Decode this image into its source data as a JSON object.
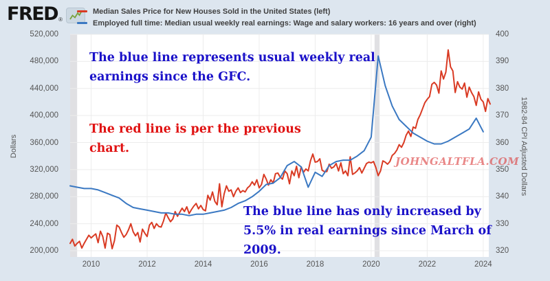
{
  "header": {
    "logo_text": "FRED",
    "registered_mark": "®",
    "legend": [
      {
        "label": "Median Sales Price for New Houses Sold in the United States (left)",
        "color": "#d93a23"
      },
      {
        "label": "Employed full time: Median usual weekly real earnings: Wage and salary workers: 16 years and over (right)",
        "color": "#3a78c2"
      }
    ]
  },
  "annotations": {
    "note_blue_top": {
      "lines": [
        "The blue line represents usual weekly real",
        "earnings since the GFC."
      ],
      "color": "#1b12c9"
    },
    "note_red": {
      "lines": [
        "The red line is per the previous",
        "chart."
      ],
      "color": "#e01212"
    },
    "note_blue_bottom": {
      "lines": [
        "The blue line has only increased by",
        "5.5% in real earnings since March of",
        "2009."
      ],
      "color": "#1b12c9"
    }
  },
  "watermark": {
    "text": "JOHNGALTFLA.COM",
    "color": "rgba(219,62,62,0.62)"
  },
  "chart_data": {
    "type": "line",
    "title": "",
    "grid": true,
    "plot_bg": "#ffffff",
    "gridline_color": "#ececec",
    "recession_band_color": "#e0e0e3",
    "left_axis": {
      "title": "Dollars",
      "ticks": [
        {
          "label": "520,000",
          "value": 520000
        },
        {
          "label": "480,000",
          "value": 480000
        },
        {
          "label": "440,000",
          "value": 440000
        },
        {
          "label": "400,000",
          "value": 400000
        },
        {
          "label": "360,000",
          "value": 360000
        },
        {
          "label": "320,000",
          "value": 320000
        },
        {
          "label": "280,000",
          "value": 280000
        },
        {
          "label": "240,000",
          "value": 240000
        },
        {
          "label": "200,000",
          "value": 200000
        }
      ]
    },
    "right_axis": {
      "title": "1982-84 CPI Adjusted Dollars",
      "ticks": [
        {
          "label": "400",
          "value": 400
        },
        {
          "label": "390",
          "value": 390
        },
        {
          "label": "380",
          "value": 380
        },
        {
          "label": "370",
          "value": 370
        },
        {
          "label": "360",
          "value": 360
        },
        {
          "label": "350",
          "value": 350
        },
        {
          "label": "340",
          "value": 340
        },
        {
          "label": "330",
          "value": 330
        },
        {
          "label": "320",
          "value": 320
        }
      ]
    },
    "x_axis": {
      "range": [
        2009.25,
        2024.2
      ],
      "ticks": [
        {
          "label": "2010",
          "value": 2010
        },
        {
          "label": "2012",
          "value": 2012
        },
        {
          "label": "2014",
          "value": 2014
        },
        {
          "label": "2016",
          "value": 2016
        },
        {
          "label": "2018",
          "value": 2018
        },
        {
          "label": "2020",
          "value": 2020
        },
        {
          "label": "2022",
          "value": 2022
        },
        {
          "label": "2024",
          "value": 2024
        }
      ]
    },
    "recession_bands": [
      [
        2009.25,
        2009.5
      ],
      [
        2020.12,
        2020.3
      ]
    ],
    "series": [
      {
        "name": "Median Sales Price for New Houses Sold in the United States",
        "axis": "left",
        "color": "#d93a23",
        "frequency": "monthly",
        "start": 2009.25,
        "step": 0.0833333,
        "values": [
          211000,
          217000,
          207000,
          211000,
          214000,
          204000,
          211000,
          217000,
          223000,
          219000,
          222000,
          225000,
          212000,
          229000,
          221000,
          204000,
          226000,
          224000,
          203000,
          215000,
          238000,
          235000,
          227000,
          220000,
          224000,
          231000,
          240000,
          228000,
          222000,
          227000,
          213000,
          232000,
          226000,
          221000,
          238000,
          242000,
          233000,
          240000,
          236000,
          235000,
          244000,
          256000,
          249000,
          243000,
          247000,
          258000,
          251000,
          257000,
          263000,
          258000,
          265000,
          255000,
          261000,
          266000,
          270000,
          262000,
          267000,
          261000,
          259000,
          282000,
          275000,
          287000,
          273000,
          268000,
          299000,
          265000,
          284000,
          296000,
          288000,
          290000,
          280000,
          288000,
          293000,
          286000,
          289000,
          287000,
          293000,
          296000,
          302000,
          297000,
          305000,
          293000,
          298000,
          313000,
          306000,
          297000,
          305000,
          300000,
          314000,
          315000,
          309000,
          306000,
          318000,
          314000,
          299000,
          318000,
          311000,
          325000,
          308000,
          324000,
          316000,
          321000,
          318000,
          333000,
          343000,
          331000,
          332000,
          336000,
          319000,
          317000,
          317000,
          328000,
          322000,
          324000,
          329000,
          318000,
          330000,
          314000,
          318000,
          311000,
          339000,
          313000,
          315000,
          318000,
          323000,
          315000,
          322000,
          329000,
          331000,
          330000,
          332000,
          323000,
          311000,
          318000,
          333000,
          331000,
          328000,
          332000,
          341000,
          344000,
          349000,
          357000,
          353000,
          360000,
          371000,
          377000,
          369000,
          383000,
          381000,
          394000,
          401000,
          410000,
          419000,
          424000,
          428000,
          446000,
          449000,
          445000,
          433000,
          466000,
          454000,
          464000,
          497000,
          472000,
          466000,
          434000,
          450000,
          442000,
          439000,
          448000,
          427000,
          442000,
          434000,
          428000,
          415000,
          435000,
          424000,
          420000,
          406000,
          425000,
          417000
        ]
      },
      {
        "name": "Employed full time: Median usual weekly real earnings: Wage and salary workers: 16 years and over",
        "axis": "right",
        "color": "#3a78c2",
        "frequency": "quarterly",
        "start": 2009.25,
        "step": 0.25,
        "values": [
          344,
          343.5,
          343,
          343,
          342.5,
          341.5,
          340.5,
          339.5,
          337.5,
          336,
          335.5,
          335,
          334.5,
          334,
          334,
          333.5,
          333.5,
          333,
          333.5,
          333.5,
          334,
          334.5,
          335,
          336,
          337.5,
          338.5,
          340,
          342,
          344.5,
          345,
          347,
          351.5,
          353,
          351,
          343.5,
          349,
          347.5,
          351.5,
          353,
          353.5,
          353.5,
          355,
          357,
          362,
          392,
          381,
          373.5,
          368.5,
          366,
          363.5,
          362,
          360.5,
          359.5,
          359.5,
          360.5,
          362,
          363.5,
          365,
          369,
          364
        ]
      }
    ]
  }
}
